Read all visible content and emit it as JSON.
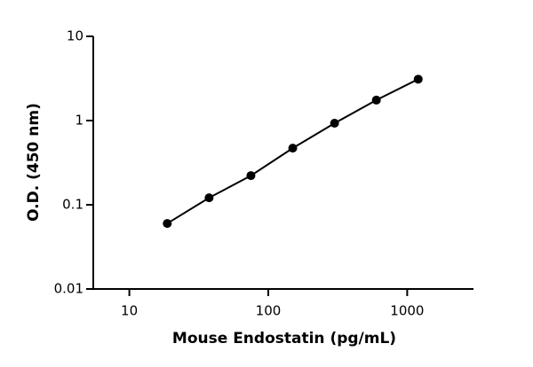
{
  "chart_data": {
    "type": "line",
    "x_label": "Mouse Endostatin (pg/mL)",
    "y_label": "O.D. (450 nm)",
    "x": [
      18.75,
      37.5,
      75,
      150,
      300,
      600,
      1200
    ],
    "series": [
      {
        "color": "#000000",
        "values": [
          0.06,
          0.121,
          0.222,
          0.47,
          0.93,
          1.75,
          3.1
        ]
      }
    ],
    "xscale": "log",
    "yscale": "log",
    "xlim": [
      5.5,
      3000
    ],
    "xticks": [
      10,
      100,
      1000
    ],
    "ylim": [
      0.01,
      10
    ],
    "yticks": [
      0.01,
      0.1,
      1,
      10
    ]
  }
}
